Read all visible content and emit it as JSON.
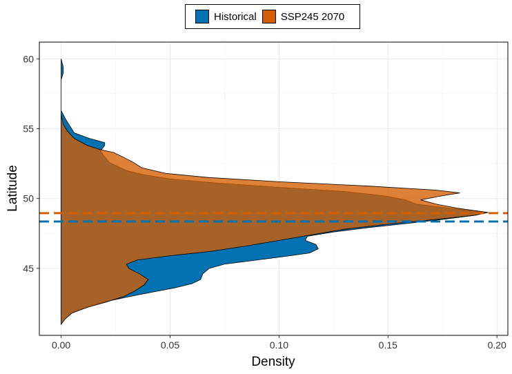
{
  "chart_data": {
    "type": "area",
    "orientation": "horizontal-density",
    "title": "",
    "xlabel": "Density",
    "ylabel": "Latitude",
    "xlim": [
      -0.01,
      0.205
    ],
    "ylim": [
      40.2,
      61.2
    ],
    "x_ticks": [
      0.0,
      0.05,
      0.1,
      0.15,
      0.2
    ],
    "x_tick_labels": [
      "0.00",
      "0.05",
      "0.10",
      "0.15",
      "0.20"
    ],
    "y_ticks": [
      45,
      50,
      55,
      60
    ],
    "y_tick_labels": [
      "45",
      "50",
      "55",
      "60"
    ],
    "grid": true,
    "legend_position": "top",
    "series": [
      {
        "name": "Historical",
        "color": "#0072B2",
        "mean_latitude": 48.35,
        "points": [
          [
            41.0,
            0.0
          ],
          [
            41.4,
            0.002
          ],
          [
            41.8,
            0.005
          ],
          [
            42.2,
            0.011
          ],
          [
            42.6,
            0.02
          ],
          [
            43.0,
            0.032
          ],
          [
            43.3,
            0.042
          ],
          [
            43.6,
            0.052
          ],
          [
            43.9,
            0.06
          ],
          [
            44.2,
            0.064
          ],
          [
            44.6,
            0.065
          ],
          [
            45.0,
            0.068
          ],
          [
            45.3,
            0.075
          ],
          [
            45.6,
            0.09
          ],
          [
            45.9,
            0.105
          ],
          [
            46.1,
            0.114
          ],
          [
            46.4,
            0.118
          ],
          [
            46.7,
            0.117
          ],
          [
            47.0,
            0.112
          ],
          [
            47.3,
            0.113
          ],
          [
            47.6,
            0.125
          ],
          [
            47.9,
            0.14
          ],
          [
            48.2,
            0.158
          ],
          [
            48.5,
            0.175
          ],
          [
            48.8,
            0.19
          ],
          [
            49.0,
            0.195
          ],
          [
            49.3,
            0.178
          ],
          [
            49.6,
            0.163
          ],
          [
            49.9,
            0.158
          ],
          [
            50.2,
            0.148
          ],
          [
            50.5,
            0.13
          ],
          [
            50.8,
            0.1
          ],
          [
            51.1,
            0.072
          ],
          [
            51.4,
            0.05
          ],
          [
            51.7,
            0.038
          ],
          [
            52.0,
            0.03
          ],
          [
            52.3,
            0.026
          ],
          [
            52.6,
            0.022
          ],
          [
            53.0,
            0.02
          ],
          [
            53.4,
            0.018
          ],
          [
            53.8,
            0.02
          ],
          [
            54.0,
            0.02
          ],
          [
            54.3,
            0.013
          ],
          [
            54.7,
            0.006
          ],
          [
            55.2,
            0.004
          ],
          [
            55.7,
            0.002
          ],
          [
            56.3,
            0.0
          ],
          [
            57.5,
            0.0
          ],
          [
            58.5,
            0.0
          ],
          [
            59.0,
            0.001
          ],
          [
            59.4,
            0.001
          ],
          [
            60.0,
            0.0
          ]
        ]
      },
      {
        "name": "SSP245 2070",
        "color": "#D55E00",
        "mean_latitude": 48.95,
        "points": [
          [
            41.0,
            0.0
          ],
          [
            41.4,
            0.002
          ],
          [
            41.8,
            0.005
          ],
          [
            42.2,
            0.012
          ],
          [
            42.6,
            0.021
          ],
          [
            43.0,
            0.029
          ],
          [
            43.4,
            0.034
          ],
          [
            43.8,
            0.038
          ],
          [
            44.2,
            0.04
          ],
          [
            44.6,
            0.036
          ],
          [
            45.0,
            0.031
          ],
          [
            45.3,
            0.03
          ],
          [
            45.6,
            0.035
          ],
          [
            45.9,
            0.05
          ],
          [
            46.2,
            0.068
          ],
          [
            46.6,
            0.085
          ],
          [
            47.0,
            0.1
          ],
          [
            47.4,
            0.115
          ],
          [
            47.8,
            0.13
          ],
          [
            48.2,
            0.152
          ],
          [
            48.5,
            0.172
          ],
          [
            48.8,
            0.19
          ],
          [
            49.0,
            0.196
          ],
          [
            49.3,
            0.182
          ],
          [
            49.6,
            0.172
          ],
          [
            49.9,
            0.165
          ],
          [
            50.2,
            0.175
          ],
          [
            50.4,
            0.183
          ],
          [
            50.6,
            0.172
          ],
          [
            50.9,
            0.14
          ],
          [
            51.2,
            0.1
          ],
          [
            51.5,
            0.068
          ],
          [
            51.8,
            0.048
          ],
          [
            52.2,
            0.037
          ],
          [
            52.6,
            0.033
          ],
          [
            53.0,
            0.028
          ],
          [
            53.3,
            0.024
          ],
          [
            53.5,
            0.018
          ],
          [
            53.8,
            0.012
          ],
          [
            54.3,
            0.006
          ],
          [
            54.8,
            0.003
          ],
          [
            55.3,
            0.001
          ],
          [
            56.0,
            0.0
          ]
        ]
      }
    ]
  }
}
